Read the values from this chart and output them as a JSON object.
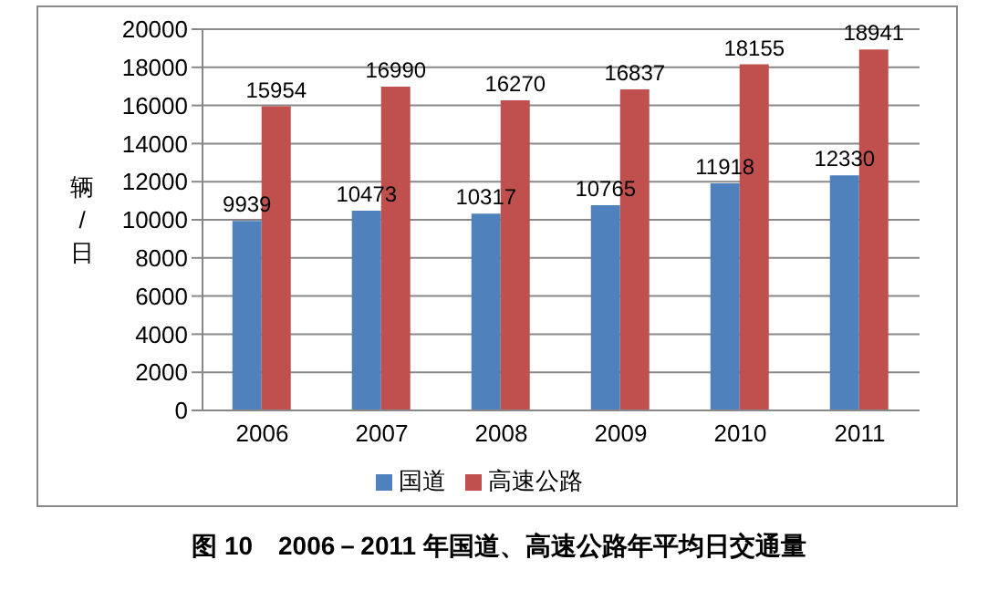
{
  "chart_data": {
    "type": "bar",
    "title": "图 10　2006－2011 年国道、高速公路年平均日交通量",
    "ylabel": "辆/日",
    "categories": [
      "2006",
      "2007",
      "2008",
      "2009",
      "2010",
      "2011"
    ],
    "series": [
      {
        "name": "国道",
        "color": "#4f81bd",
        "values": [
          9939,
          10473,
          10317,
          10765,
          11918,
          12330
        ]
      },
      {
        "name": "高速公路",
        "color": "#c0504d",
        "values": [
          15954,
          16990,
          16270,
          16837,
          18155,
          18941
        ]
      }
    ],
    "ylim": [
      0,
      20000
    ],
    "yticks": [
      0,
      2000,
      4000,
      6000,
      8000,
      10000,
      12000,
      14000,
      16000,
      18000,
      20000
    ],
    "grid": "y",
    "legend": "bottom",
    "data_labels": true
  }
}
